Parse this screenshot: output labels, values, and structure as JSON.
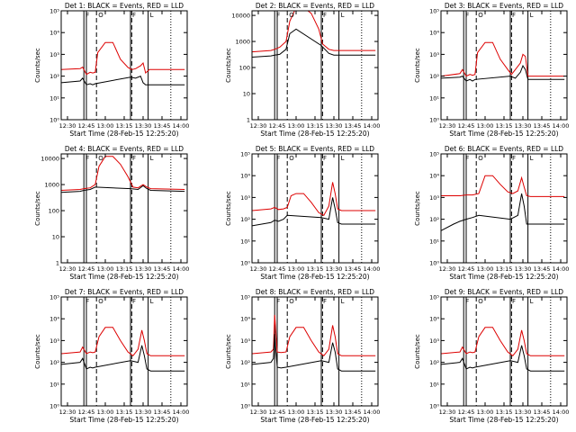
{
  "figure": {
    "x_ticks": [
      "12:30",
      "12:45",
      "13:00",
      "13:15",
      "13:30",
      "13:45",
      "14:00"
    ],
    "xlabel": "Start Time (28-Feb-15 12:25:20)",
    "ylabel": "Counts/sec",
    "colors": {
      "events": "#000000",
      "lld": "#dd0000",
      "axes": "#000000"
    }
  },
  "chart_data": [
    {
      "type": "line",
      "scale": "log",
      "title": "Det 1: BLACK = Events, RED = LLD",
      "ylim": [
        1,
        100000
      ],
      "y_ticks": [
        "10⁰",
        "10¹",
        "10²",
        "10³",
        "10⁴",
        "10⁵"
      ],
      "xlim": [
        "12:25",
        "14:05"
      ],
      "solid_lines": [
        "12:43",
        "12:45",
        "13:20",
        "13:34"
      ],
      "dashed_lines": [
        "12:53",
        "13:21"
      ],
      "dotted_lines": [
        "13:52"
      ],
      "markers": [
        "F",
        "O",
        "F",
        "L"
      ],
      "series": [
        {
          "x": [
            "12:25",
            "12:40",
            "12:42",
            "12:45",
            "12:48",
            "12:50",
            "12:52",
            "12:54",
            "13:00",
            "13:06",
            "13:12",
            "13:18",
            "13:21",
            "13:24",
            "13:28",
            "13:30",
            "13:32",
            "13:35",
            "14:03"
          ],
          "values": [
            200,
            220,
            260,
            120,
            150,
            140,
            150,
            1200,
            3500,
            3500,
            600,
            250,
            200,
            220,
            300,
            400,
            140,
            200,
            200
          ]
        },
        {
          "x": [
            "12:25",
            "12:40",
            "12:42",
            "12:45",
            "12:48",
            "12:50",
            "12:52",
            "13:20",
            "13:24",
            "13:28",
            "13:30",
            "13:32",
            "13:35",
            "14:03"
          ],
          "values": [
            50,
            60,
            80,
            40,
            45,
            40,
            45,
            90,
            80,
            100,
            50,
            40,
            40,
            40
          ]
        }
      ]
    },
    {
      "type": "line",
      "scale": "log",
      "title": "Det 2: BLACK = Events, RED = LLD",
      "ylim": [
        1,
        15000
      ],
      "y_ticks": [
        "1",
        "10",
        "100",
        "1000",
        "10000"
      ],
      "xlim": [
        "12:25",
        "14:05"
      ],
      "solid_lines": [
        "12:43",
        "12:45",
        "13:20",
        "13:34"
      ],
      "dashed_lines": [
        "12:53",
        "13:21"
      ],
      "dotted_lines": [
        "13:52"
      ],
      "markers": [
        "F",
        "O",
        "F",
        "L"
      ],
      "series": [
        {
          "x": [
            "12:25",
            "12:40",
            "12:43",
            "12:47",
            "12:52",
            "12:55",
            "13:00",
            "13:06",
            "13:12",
            "13:18",
            "13:21",
            "13:26",
            "13:30",
            "14:03"
          ],
          "values": [
            400,
            450,
            500,
            600,
            1000,
            6000,
            20000,
            20000,
            12000,
            3000,
            800,
            500,
            450,
            450
          ]
        },
        {
          "x": [
            "12:25",
            "12:40",
            "12:43",
            "12:47",
            "12:52",
            "12:55",
            "13:00",
            "13:20",
            "13:26",
            "13:30",
            "14:03"
          ],
          "values": [
            250,
            280,
            300,
            320,
            500,
            2000,
            3000,
            700,
            350,
            300,
            300
          ]
        }
      ]
    },
    {
      "type": "line",
      "scale": "log",
      "title": "Det 3: BLACK = Events, RED = LLD",
      "ylim": [
        1,
        100000
      ],
      "y_ticks": [
        "10⁰",
        "10¹",
        "10²",
        "10³",
        "10⁴",
        "10⁵"
      ],
      "xlim": [
        "12:25",
        "14:05"
      ],
      "solid_lines": [
        "12:43",
        "12:45",
        "13:20",
        "13:34"
      ],
      "dashed_lines": [
        "12:53",
        "13:21"
      ],
      "dotted_lines": [
        "13:52"
      ],
      "markers": [
        "F",
        "O",
        "F",
        "L"
      ],
      "series": [
        {
          "x": [
            "12:25",
            "12:40",
            "12:42",
            "12:45",
            "12:48",
            "12:50",
            "12:52",
            "12:54",
            "13:00",
            "13:06",
            "13:12",
            "13:18",
            "13:21",
            "13:24",
            "13:28",
            "13:30",
            "13:32",
            "13:34",
            "14:03"
          ],
          "values": [
            100,
            130,
            200,
            100,
            120,
            110,
            120,
            1200,
            3500,
            3500,
            600,
            200,
            120,
            200,
            400,
            1000,
            800,
            100,
            100
          ]
        },
        {
          "x": [
            "12:25",
            "12:40",
            "12:42",
            "12:45",
            "12:48",
            "12:50",
            "12:52",
            "13:20",
            "13:24",
            "13:28",
            "13:30",
            "13:32",
            "13:34",
            "14:03"
          ],
          "values": [
            80,
            90,
            100,
            60,
            70,
            60,
            70,
            100,
            80,
            150,
            300,
            200,
            70,
            70
          ]
        }
      ]
    },
    {
      "type": "line",
      "scale": "log",
      "title": "Det 4: BLACK = Events, RED = LLD",
      "ylim": [
        1,
        15000
      ],
      "y_ticks": [
        "1",
        "10",
        "100",
        "1000",
        "10000"
      ],
      "xlim": [
        "12:25",
        "14:05"
      ],
      "solid_lines": [
        "12:43",
        "12:45",
        "13:20",
        "13:34"
      ],
      "dashed_lines": [
        "12:53",
        "13:21"
      ],
      "dotted_lines": [
        "13:52"
      ],
      "markers": [
        "F",
        "O",
        "F",
        "L"
      ],
      "series": [
        {
          "x": [
            "12:25",
            "12:40",
            "12:43",
            "12:48",
            "12:52",
            "12:55",
            "13:00",
            "13:06",
            "13:12",
            "13:18",
            "13:22",
            "13:26",
            "13:30",
            "13:33",
            "13:36",
            "14:03"
          ],
          "values": [
            600,
            650,
            700,
            750,
            1000,
            5000,
            12000,
            12000,
            6000,
            2000,
            800,
            750,
            1000,
            800,
            700,
            650
          ]
        },
        {
          "x": [
            "12:25",
            "12:40",
            "12:43",
            "12:48",
            "12:52",
            "13:20",
            "13:26",
            "13:30",
            "13:33",
            "13:36",
            "14:03"
          ],
          "values": [
            500,
            550,
            600,
            650,
            800,
            700,
            650,
            900,
            700,
            600,
            550
          ]
        }
      ]
    },
    {
      "type": "line",
      "scale": "log",
      "title": "Det 5: BLACK = Events, RED = LLD",
      "ylim": [
        1,
        100000
      ],
      "y_ticks": [
        "10⁰",
        "10¹",
        "10²",
        "10³",
        "10⁴",
        "10⁵"
      ],
      "xlim": [
        "12:25",
        "14:05"
      ],
      "solid_lines": [
        "12:43",
        "12:45",
        "13:20",
        "13:34"
      ],
      "dashed_lines": [
        "12:53",
        "13:21"
      ],
      "dotted_lines": [
        "13:52"
      ],
      "markers": [
        "F",
        "O",
        "F",
        "L"
      ],
      "series": [
        {
          "x": [
            "12:25",
            "12:40",
            "12:43",
            "12:46",
            "12:50",
            "12:53",
            "12:56",
            "13:00",
            "13:06",
            "13:12",
            "13:18",
            "13:22",
            "13:26",
            "13:29",
            "13:31",
            "13:33",
            "13:36",
            "14:03"
          ],
          "values": [
            250,
            300,
            350,
            280,
            300,
            350,
            1200,
            1500,
            1500,
            600,
            200,
            150,
            400,
            5000,
            1500,
            300,
            250,
            250
          ]
        },
        {
          "x": [
            "12:25",
            "12:40",
            "12:43",
            "12:46",
            "12:50",
            "12:53",
            "13:20",
            "13:26",
            "13:29",
            "13:31",
            "13:33",
            "13:36",
            "14:03"
          ],
          "values": [
            50,
            70,
            90,
            80,
            100,
            150,
            120,
            100,
            1000,
            300,
            70,
            60,
            60
          ]
        }
      ]
    },
    {
      "type": "line",
      "scale": "log",
      "title": "Det 6: BLACK = Events, RED = LLD",
      "ylim": [
        1,
        100000
      ],
      "y_ticks": [
        "10⁰",
        "10¹",
        "10²",
        "10³",
        "10⁴",
        "10⁵"
      ],
      "xlim": [
        "12:25",
        "14:05"
      ],
      "solid_lines": [
        "12:43",
        "12:45",
        "13:20",
        "13:34"
      ],
      "dashed_lines": [
        "12:53",
        "13:21"
      ],
      "dotted_lines": [
        "13:52"
      ],
      "markers": [
        "F",
        "O",
        "F",
        "L"
      ],
      "series": [
        {
          "x": [
            "12:25",
            "12:40",
            "12:45",
            "12:50",
            "12:55",
            "13:00",
            "13:06",
            "13:12",
            "13:18",
            "13:22",
            "13:26",
            "13:29",
            "13:31",
            "13:33",
            "13:36",
            "14:03"
          ],
          "values": [
            1200,
            1200,
            1300,
            1300,
            1500,
            10000,
            10000,
            4000,
            1800,
            1500,
            2000,
            8000,
            3000,
            1200,
            1100,
            1100
          ]
        },
        {
          "x": [
            "12:25",
            "12:35",
            "12:40",
            "12:45",
            "12:50",
            "12:55",
            "13:20",
            "13:26",
            "13:29",
            "13:31",
            "13:33",
            "13:36",
            "14:03"
          ],
          "values": [
            30,
            60,
            80,
            100,
            120,
            150,
            100,
            150,
            1500,
            400,
            60,
            60,
            60
          ]
        }
      ]
    },
    {
      "type": "line",
      "scale": "log",
      "title": "Det 7: BLACK = Events, RED = LLD",
      "ylim": [
        1,
        100000
      ],
      "y_ticks": [
        "10⁰",
        "10¹",
        "10²",
        "10³",
        "10⁴",
        "10⁵"
      ],
      "xlim": [
        "12:25",
        "14:05"
      ],
      "solid_lines": [
        "12:43",
        "12:45",
        "13:20",
        "13:34"
      ],
      "dashed_lines": [
        "12:53",
        "13:21"
      ],
      "dotted_lines": [
        "13:52"
      ],
      "markers": [
        "F",
        "O",
        "F",
        "L"
      ],
      "series": [
        {
          "x": [
            "12:25",
            "12:40",
            "12:42",
            "12:45",
            "12:48",
            "12:50",
            "12:52",
            "12:55",
            "13:00",
            "13:06",
            "13:12",
            "13:18",
            "13:22",
            "13:26",
            "13:29",
            "13:31",
            "13:33",
            "13:36",
            "14:03"
          ],
          "values": [
            250,
            300,
            500,
            250,
            300,
            280,
            300,
            1500,
            4000,
            4000,
            1000,
            300,
            200,
            400,
            3000,
            1000,
            250,
            200,
            200
          ]
        },
        {
          "x": [
            "12:25",
            "12:40",
            "12:42",
            "12:45",
            "12:48",
            "12:50",
            "12:52",
            "13:20",
            "13:26",
            "13:29",
            "13:31",
            "13:33",
            "13:36",
            "14:03"
          ],
          "values": [
            80,
            100,
            150,
            50,
            60,
            55,
            60,
            120,
            100,
            600,
            200,
            50,
            40,
            40
          ]
        }
      ]
    },
    {
      "type": "line",
      "scale": "log",
      "title": "Det 8: BLACK = Events, RED = LLD",
      "ylim": [
        1,
        100000
      ],
      "y_ticks": [
        "10⁰",
        "10¹",
        "10²",
        "10³",
        "10⁴",
        "10⁵"
      ],
      "xlim": [
        "12:25",
        "14:05"
      ],
      "solid_lines": [
        "12:43",
        "12:45",
        "13:20",
        "13:34"
      ],
      "dashed_lines": [
        "12:53",
        "13:21"
      ],
      "dotted_lines": [
        "13:52"
      ],
      "markers": [
        "F",
        "O",
        "F",
        "L"
      ],
      "series": [
        {
          "x": [
            "12:25",
            "12:40",
            "12:42",
            "12:43",
            "12:45",
            "12:48",
            "12:52",
            "12:55",
            "13:00",
            "13:06",
            "13:12",
            "13:18",
            "13:22",
            "13:26",
            "13:29",
            "13:31",
            "13:33",
            "13:36",
            "14:03"
          ],
          "values": [
            250,
            300,
            400,
            15000,
            300,
            280,
            300,
            1500,
            4000,
            4000,
            1000,
            300,
            200,
            400,
            5000,
            1500,
            250,
            200,
            200
          ]
        },
        {
          "x": [
            "12:25",
            "12:40",
            "12:42",
            "12:43",
            "12:45",
            "12:48",
            "12:52",
            "13:20",
            "13:26",
            "13:29",
            "13:31",
            "13:33",
            "13:36",
            "14:03"
          ],
          "values": [
            80,
            100,
            150,
            2000,
            60,
            55,
            60,
            120,
            100,
            800,
            300,
            50,
            40,
            40
          ]
        }
      ]
    },
    {
      "type": "line",
      "scale": "log",
      "title": "Det 9: BLACK = Events, RED = LLD",
      "ylim": [
        1,
        100000
      ],
      "y_ticks": [
        "10⁰",
        "10¹",
        "10²",
        "10³",
        "10⁴",
        "10⁵"
      ],
      "xlim": [
        "12:25",
        "14:05"
      ],
      "solid_lines": [
        "12:43",
        "12:45",
        "13:20",
        "13:34"
      ],
      "dashed_lines": [
        "12:53",
        "13:21"
      ],
      "dotted_lines": [
        "13:52"
      ],
      "markers": [
        "F",
        "O",
        "F",
        "L"
      ],
      "series": [
        {
          "x": [
            "12:25",
            "12:40",
            "12:42",
            "12:45",
            "12:48",
            "12:50",
            "12:52",
            "12:55",
            "13:00",
            "13:06",
            "13:12",
            "13:18",
            "13:22",
            "13:26",
            "13:29",
            "13:31",
            "13:33",
            "13:36",
            "14:03"
          ],
          "values": [
            250,
            300,
            500,
            250,
            300,
            280,
            300,
            1500,
            4000,
            4000,
            1000,
            300,
            200,
            400,
            3000,
            1000,
            250,
            200,
            200
          ]
        },
        {
          "x": [
            "12:25",
            "12:40",
            "12:42",
            "12:45",
            "12:48",
            "12:50",
            "12:52",
            "13:20",
            "13:26",
            "13:29",
            "13:31",
            "13:33",
            "13:36",
            "14:03"
          ],
          "values": [
            80,
            100,
            150,
            50,
            60,
            55,
            60,
            120,
            100,
            600,
            200,
            50,
            40,
            40
          ]
        }
      ]
    }
  ]
}
